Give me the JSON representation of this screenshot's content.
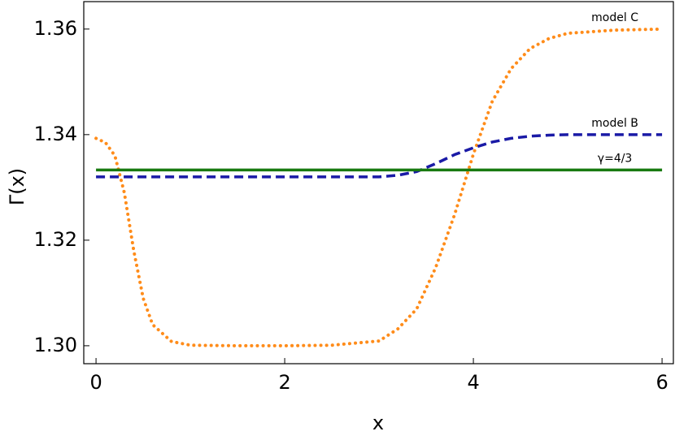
{
  "chart_data": {
    "type": "line",
    "xlabel": "x",
    "ylabel": "Γ(x)",
    "x": [
      0,
      0.1,
      0.2,
      0.3,
      0.4,
      0.5,
      0.6,
      0.8,
      1.0,
      1.5,
      2,
      2.5,
      3,
      3.2,
      3.4,
      3.6,
      3.8,
      4.0,
      4.2,
      4.4,
      4.6,
      4.8,
      5.0,
      5.5,
      6
    ],
    "series": [
      {
        "name": "model C",
        "color": "#ff8c1a",
        "linestyle": "dotted",
        "values": [
          1.3393,
          1.3385,
          1.336,
          1.329,
          1.318,
          1.309,
          1.304,
          1.3008,
          1.3001,
          1.3,
          1.3,
          1.3001,
          1.3009,
          1.3032,
          1.307,
          1.3148,
          1.3248,
          1.3363,
          1.3463,
          1.3525,
          1.3563,
          1.3582,
          1.3592,
          1.3598,
          1.36
        ]
      },
      {
        "name": "model B",
        "color": "#1a1aa6",
        "linestyle": "dashed",
        "values": [
          1.332,
          1.332,
          1.332,
          1.332,
          1.332,
          1.332,
          1.332,
          1.332,
          1.332,
          1.332,
          1.332,
          1.332,
          1.332,
          1.3323,
          1.333,
          1.3345,
          1.3362,
          1.3375,
          1.3386,
          1.3393,
          1.3397,
          1.3399,
          1.34,
          1.34,
          1.34
        ]
      },
      {
        "name": "γ=4/3",
        "color": "#187a10",
        "linestyle": "solid",
        "values": [
          1.3333,
          1.3333,
          1.3333,
          1.3333,
          1.3333,
          1.3333,
          1.3333,
          1.3333,
          1.3333,
          1.3333,
          1.3333,
          1.3333,
          1.3333,
          1.3333,
          1.3333,
          1.3333,
          1.3333,
          1.3333,
          1.3333,
          1.3333,
          1.3333,
          1.3333,
          1.3333,
          1.3333,
          1.3333
        ]
      }
    ],
    "xlim": [
      -0.13,
      6.12
    ],
    "xticks": [
      0,
      2,
      4,
      6
    ],
    "ylim": [
      1.2966,
      1.3652
    ],
    "yticks": [
      {
        "value": 1.3,
        "label": "1.30"
      },
      1.32,
      1.34,
      1.36
    ],
    "grid": false
  }
}
